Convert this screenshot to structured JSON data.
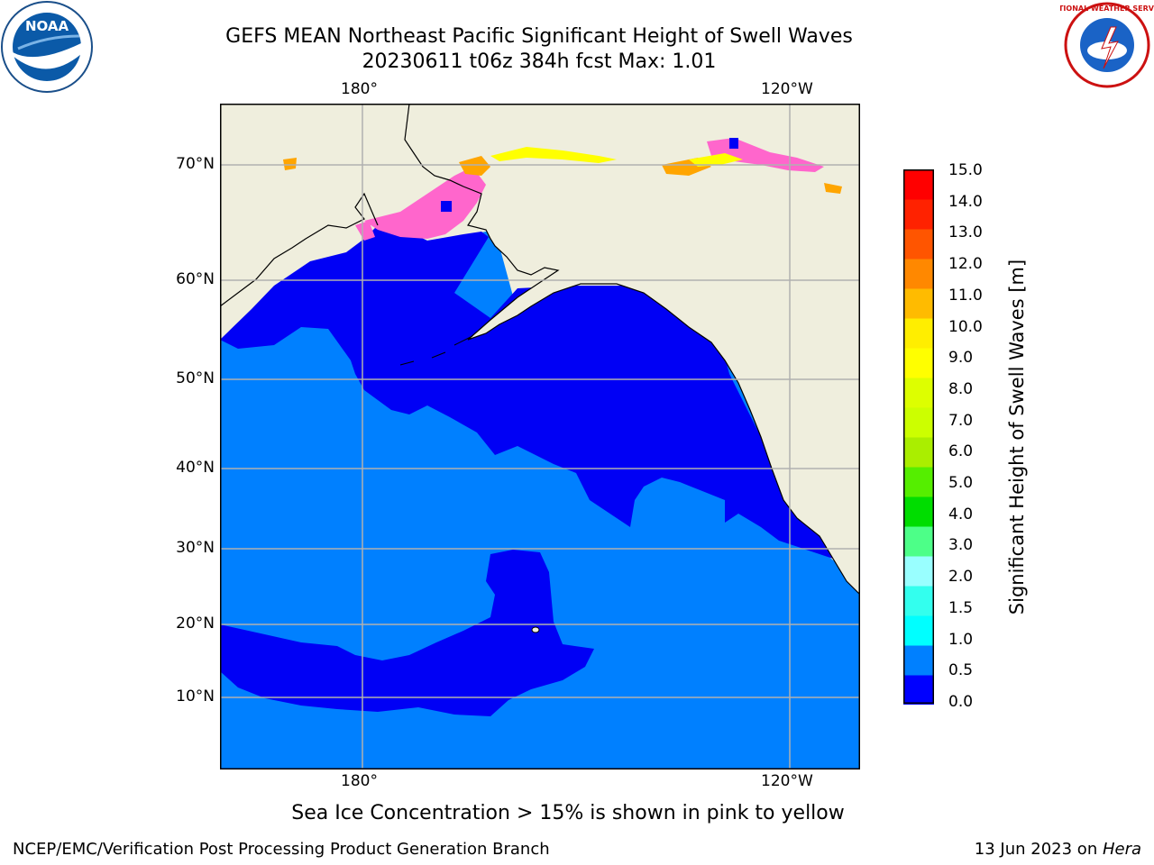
{
  "header": {
    "title_line1": "GEFS MEAN Northeast Pacific Significant Height of Swell Waves",
    "title_line2": "20230611 t06z 384h fcst   Max: 1.01"
  },
  "logos": {
    "left": "NOAA",
    "right": "NATIONAL WEATHER SERVICE"
  },
  "map": {
    "lon_labels": [
      "180°",
      "120°W"
    ],
    "lat_labels": [
      "70°N",
      "60°N",
      "50°N",
      "40°N",
      "30°N",
      "20°N",
      "10°N"
    ],
    "colors": {
      "land": "#efeedd",
      "ocean_low": "#0000f5",
      "ocean_mid": "#0080ff",
      "grid": "#b0b0b0",
      "ice_pink": "#ff66cc",
      "ice_orange": "#ffa500",
      "ice_yellow": "#ffff00"
    }
  },
  "colorbar": {
    "label": "Significant Height of Swell Waves [m]",
    "ticks": [
      "15.0",
      "14.0",
      "13.0",
      "12.0",
      "11.0",
      "10.0",
      "9.0",
      "8.0",
      "7.0",
      "6.0",
      "5.0",
      "4.0",
      "3.0",
      "2.0",
      "1.5",
      "1.0",
      "0.5",
      "0.0"
    ],
    "colors": [
      "#0000ff",
      "#0080ff",
      "#00ffff",
      "#33ffee",
      "#99ffff",
      "#4dff88",
      "#00dd00",
      "#55ee00",
      "#aaee00",
      "#ccff00",
      "#ddff00",
      "#ffff00",
      "#ffee00",
      "#ffbb00",
      "#ff8800",
      "#ff5500",
      "#ff2200",
      "#ff0000"
    ]
  },
  "caption": "Sea Ice Concentration > 15% is shown in pink to yellow",
  "footer": {
    "left": "NCEP/EMC/Verification Post Processing Product Generation Branch",
    "right_date": "13 Jun 2023 on ",
    "right_host": "Hera"
  }
}
